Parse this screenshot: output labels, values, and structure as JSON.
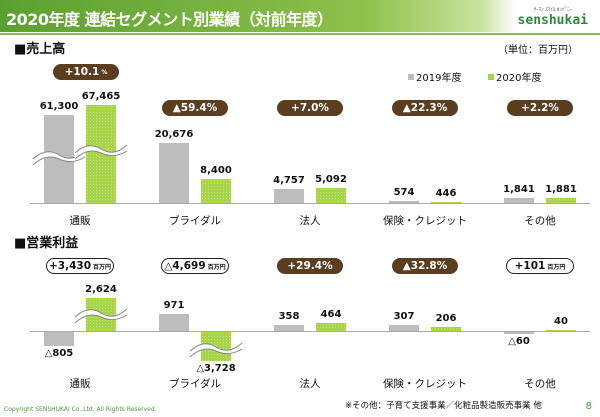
{
  "header": {
    "title": "2020年度 連結セグメント別業績（対前年度）",
    "logo_sub": "ｻｰﾏﾝ ｽﾏｲﾙ ｶﾝﾊﾟﾆｰ",
    "logo": "senshukai"
  },
  "unit": "（単位：百万円）",
  "colors": {
    "y2019": "#bdbdbd",
    "y2020": "#a8d44a",
    "badge": "#5b3d1f",
    "brand": "#5aa030"
  },
  "chart_data": [
    {
      "type": "bar",
      "title": "■売上高",
      "categories": [
        "通販",
        "ブライダル",
        "法人",
        "保険・クレジット",
        "その他"
      ],
      "series": [
        {
          "name": "2019年度",
          "values": [
            61300,
            20676,
            4757,
            574,
            1841
          ],
          "labels": [
            "61,300",
            "20,676",
            "4,757",
            "574",
            "1,841"
          ]
        },
        {
          "name": "2020年度",
          "values": [
            67465,
            8400,
            5092,
            446,
            1881
          ],
          "labels": [
            "67,465",
            "8,400",
            "5,092",
            "446",
            "1,881"
          ]
        }
      ],
      "broken_axis": true,
      "legend": "top-right",
      "badges": [
        {
          "text": "+10.1",
          "suffix": "%",
          "style": "fill"
        },
        {
          "text": "▲59.4%",
          "suffix": "",
          "style": "fill"
        },
        {
          "text": "+7.0%",
          "suffix": "",
          "style": "fill"
        },
        {
          "text": "▲22.3%",
          "suffix": "",
          "style": "fill"
        },
        {
          "text": "+2.2%",
          "suffix": "",
          "style": "fill"
        }
      ]
    },
    {
      "type": "bar",
      "title": "■営業利益",
      "categories": [
        "通販",
        "ブライダル",
        "法人",
        "保険・クレジット",
        "その他"
      ],
      "series": [
        {
          "name": "2019年度",
          "values": [
            -805,
            971,
            358,
            307,
            -60
          ],
          "labels": [
            "△805",
            "971",
            "358",
            "307",
            "△60"
          ]
        },
        {
          "name": "2020年度",
          "values": [
            2624,
            -3728,
            464,
            206,
            40
          ],
          "labels": [
            "2,624",
            "△3,728",
            "464",
            "206",
            "40"
          ]
        }
      ],
      "broken_axis": true,
      "badges": [
        {
          "text": "+3,430",
          "suffix": "百万円",
          "style": "out"
        },
        {
          "text": "△4,699",
          "suffix": "百万円",
          "style": "out"
        },
        {
          "text": "+29.4%",
          "suffix": "",
          "style": "fill"
        },
        {
          "text": "▲32.8%",
          "suffix": "",
          "style": "fill"
        },
        {
          "text": "+101",
          "suffix": "百万円",
          "style": "out"
        }
      ]
    }
  ],
  "footer": {
    "copyright": "Copyright SENSHUKAI Co.,Ltd. All Rights Reserved.",
    "note": "※その他：子育て支援事業／化粧品製造販売事業 他",
    "page": "8"
  }
}
